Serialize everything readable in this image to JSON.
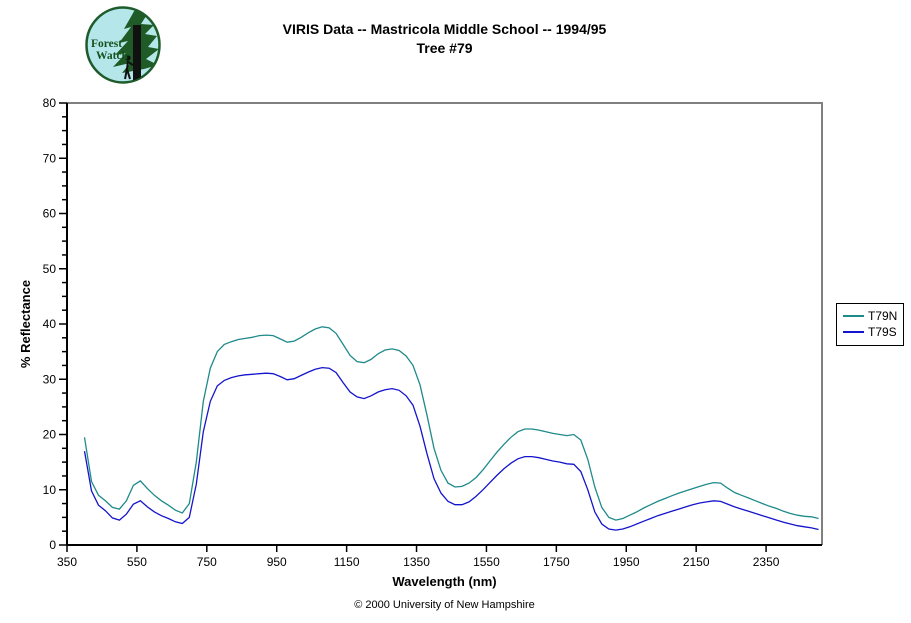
{
  "logo": {
    "line1": "Forest",
    "line2": "Watch",
    "bg_color": "#b4e6ea",
    "ring_color": "#1d5c2a",
    "tree_color": "#1e5b26",
    "trunk_color": "#111111",
    "text_color": "#14521e"
  },
  "footer": {
    "copyright": "© 2000 University of New Hampshire"
  },
  "chart_data": {
    "type": "line",
    "title": "VIRIS Data -- Mastricola Middle School -- 1994/95",
    "subtitle": "Tree #79",
    "xlabel": "Wavelength (nm)",
    "ylabel": "% Reflectance",
    "xlim": [
      350,
      2510
    ],
    "ylim": [
      0,
      80
    ],
    "xticks": [
      350,
      550,
      750,
      950,
      1150,
      1350,
      1550,
      1750,
      1950,
      2150,
      2350
    ],
    "yticks": [
      0,
      10,
      20,
      30,
      40,
      50,
      60,
      70,
      80
    ],
    "y_minor_step": 2.5,
    "grid": false,
    "legend_position": "right",
    "plot_border_color": "#808080",
    "axis_color": "#000000",
    "x": [
      400,
      420,
      440,
      460,
      480,
      500,
      520,
      540,
      560,
      580,
      600,
      620,
      640,
      660,
      680,
      700,
      720,
      740,
      760,
      780,
      800,
      820,
      840,
      860,
      880,
      900,
      920,
      940,
      960,
      980,
      1000,
      1020,
      1040,
      1060,
      1080,
      1100,
      1120,
      1140,
      1160,
      1180,
      1200,
      1220,
      1240,
      1260,
      1280,
      1300,
      1320,
      1340,
      1360,
      1380,
      1400,
      1420,
      1440,
      1460,
      1480,
      1500,
      1520,
      1540,
      1560,
      1580,
      1600,
      1620,
      1640,
      1660,
      1680,
      1700,
      1720,
      1740,
      1760,
      1780,
      1800,
      1820,
      1840,
      1860,
      1880,
      1900,
      1920,
      1940,
      1960,
      1980,
      2000,
      2020,
      2040,
      2060,
      2080,
      2100,
      2120,
      2140,
      2160,
      2180,
      2200,
      2220,
      2240,
      2260,
      2280,
      2300,
      2320,
      2340,
      2360,
      2380,
      2400,
      2420,
      2440,
      2460,
      2480,
      2500
    ],
    "series": [
      {
        "name": "T79N",
        "color": "#1f8a8a",
        "values": [
          19.5,
          11.5,
          9,
          8,
          6.8,
          6.5,
          8,
          10.8,
          11.6,
          10.2,
          9,
          8,
          7.2,
          6.3,
          5.8,
          7.5,
          15,
          26,
          32,
          35,
          36.3,
          36.8,
          37.2,
          37.4,
          37.6,
          37.9,
          38,
          37.9,
          37.3,
          36.7,
          36.9,
          37.6,
          38.4,
          39.1,
          39.5,
          39.3,
          38.3,
          36.3,
          34.3,
          33.2,
          33,
          33.6,
          34.6,
          35.3,
          35.5,
          35.2,
          34.2,
          32.5,
          29,
          23.5,
          17.5,
          13.5,
          11.2,
          10.5,
          10.6,
          11.2,
          12.2,
          13.6,
          15.2,
          16.8,
          18.2,
          19.5,
          20.5,
          21,
          21,
          20.8,
          20.5,
          20.2,
          20,
          19.8,
          20,
          19,
          15.5,
          10.5,
          6.8,
          5,
          4.5,
          4.8,
          5.4,
          6,
          6.7,
          7.3,
          7.9,
          8.4,
          8.9,
          9.4,
          9.8,
          10.2,
          10.6,
          11,
          11.3,
          11.2,
          10.3,
          9.5,
          9,
          8.5,
          8,
          7.5,
          7,
          6.6,
          6.1,
          5.7,
          5.4,
          5.2,
          5.1,
          4.8
        ]
      },
      {
        "name": "T79S",
        "color": "#1414cc",
        "values": [
          17,
          9.8,
          7.2,
          6.2,
          4.9,
          4.5,
          5.6,
          7.4,
          8,
          6.9,
          6,
          5.3,
          4.8,
          4.2,
          3.9,
          5,
          11,
          20.5,
          26,
          28.8,
          29.8,
          30.3,
          30.6,
          30.8,
          30.9,
          31,
          31.1,
          31,
          30.5,
          29.9,
          30.1,
          30.7,
          31.3,
          31.8,
          32.1,
          32,
          31.2,
          29.4,
          27.7,
          26.8,
          26.5,
          27,
          27.7,
          28.1,
          28.3,
          28,
          27,
          25.3,
          21.5,
          16.5,
          12,
          9.4,
          7.9,
          7.3,
          7.3,
          7.8,
          8.8,
          10,
          11.3,
          12.6,
          13.8,
          14.8,
          15.6,
          16,
          16,
          15.8,
          15.5,
          15.2,
          15,
          14.7,
          14.6,
          13.3,
          10,
          6,
          3.8,
          2.9,
          2.7,
          2.9,
          3.3,
          3.8,
          4.3,
          4.8,
          5.3,
          5.7,
          6.1,
          6.5,
          6.9,
          7.3,
          7.6,
          7.8,
          8,
          7.9,
          7.4,
          6.9,
          6.5,
          6.1,
          5.7,
          5.3,
          4.9,
          4.5,
          4.1,
          3.8,
          3.5,
          3.3,
          3.1,
          2.8
        ]
      }
    ]
  }
}
